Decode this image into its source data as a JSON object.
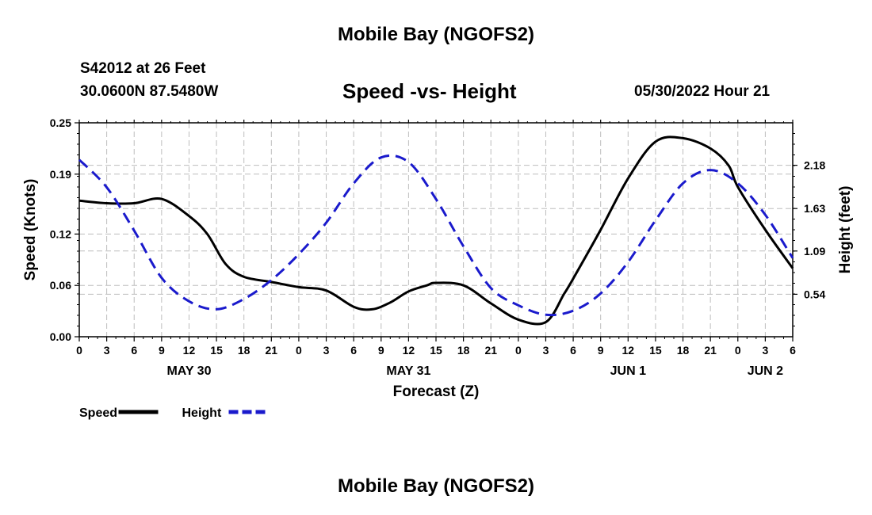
{
  "header": {
    "title": "Mobile Bay (NGOFS2)",
    "station": "S42012 at 26 Feet",
    "coords": "30.0600N  87.5480W",
    "subtitle": "Speed -vs- Height",
    "datetime": "05/30/2022 Hour 21"
  },
  "footer": {
    "title": "Mobile Bay (NGOFS2)"
  },
  "chart_data": {
    "type": "line",
    "title": "Speed -vs- Height",
    "xlabel": "Forecast (Z)",
    "ylabel": "Speed (Knots)",
    "y2label": "Height (feet)",
    "x_unit": "hours from May 30 00Z",
    "xlim": [
      0,
      78
    ],
    "ylim": [
      0,
      0.25
    ],
    "y2lim": [
      0,
      2.72
    ],
    "x_ticks": [
      0,
      3,
      6,
      9,
      12,
      15,
      18,
      21,
      24,
      27,
      30,
      33,
      36,
      39,
      42,
      45,
      48,
      51,
      54,
      57,
      60,
      63,
      66,
      69,
      72,
      75,
      78
    ],
    "x_tick_labels": [
      "0",
      "3",
      "6",
      "9",
      "12",
      "15",
      "18",
      "21",
      "0",
      "3",
      "6",
      "9",
      "12",
      "15",
      "18",
      "21",
      "0",
      "3",
      "6",
      "9",
      "12",
      "15",
      "18",
      "21",
      "0",
      "3",
      "6"
    ],
    "y_ticks": [
      0,
      0.06,
      0.12,
      0.19,
      0.25
    ],
    "y_tick_labels": [
      "0.00",
      "0.06",
      "0.12",
      "0.19",
      "0.25"
    ],
    "y2_ticks": [
      0.54,
      1.09,
      1.63,
      2.18
    ],
    "y2_tick_labels": [
      "0.54",
      "1.09",
      "1.63",
      "2.18"
    ],
    "date_labels": [
      {
        "x": 12,
        "label": "MAY 30"
      },
      {
        "x": 36,
        "label": "MAY 31"
      },
      {
        "x": 60,
        "label": "JUN 1"
      },
      {
        "x": 75,
        "label": "JUN 2"
      }
    ],
    "legend": {
      "position": "bottom-left"
    },
    "series": [
      {
        "name": "Speed",
        "axis": "left",
        "color": "#000000",
        "style": "solid",
        "x": [
          0,
          3,
          6,
          9,
          12,
          14,
          16,
          18,
          21,
          24,
          27,
          30,
          32,
          34,
          36,
          38,
          39,
          42,
          45,
          48,
          51,
          53,
          54,
          57,
          60,
          63,
          66,
          69,
          71,
          72,
          75,
          78
        ],
        "values": [
          0.159,
          0.156,
          0.156,
          0.161,
          0.141,
          0.12,
          0.085,
          0.07,
          0.064,
          0.058,
          0.054,
          0.035,
          0.032,
          0.04,
          0.053,
          0.06,
          0.063,
          0.06,
          0.039,
          0.02,
          0.017,
          0.05,
          0.068,
          0.125,
          0.185,
          0.228,
          0.232,
          0.22,
          0.2,
          0.175,
          0.125,
          0.08
        ]
      },
      {
        "name": "Height",
        "axis": "right",
        "color": "#1a1acc",
        "style": "dashed",
        "x": [
          0,
          3,
          6,
          9,
          12,
          15,
          18,
          21,
          24,
          27,
          30,
          33,
          36,
          39,
          42,
          45,
          48,
          51,
          54,
          57,
          60,
          63,
          66,
          69,
          72,
          75,
          78
        ],
        "values": [
          2.25,
          1.9,
          1.35,
          0.75,
          0.45,
          0.35,
          0.48,
          0.72,
          1.05,
          1.45,
          1.95,
          2.28,
          2.22,
          1.75,
          1.15,
          0.62,
          0.4,
          0.28,
          0.33,
          0.55,
          0.95,
          1.48,
          1.95,
          2.12,
          1.95,
          1.55,
          1.0
        ]
      }
    ]
  }
}
